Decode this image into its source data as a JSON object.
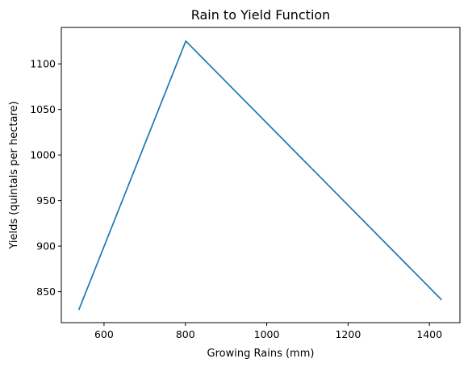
{
  "chart_data": {
    "type": "line",
    "title": "Rain to Yield Function",
    "xlabel": "Growing Rains (mm)",
    "ylabel": "Yields (quintals per hectare)",
    "xlim": [
      495,
      1475
    ],
    "ylim": [
      816,
      1140
    ],
    "xticks": [
      600,
      800,
      1000,
      1200,
      1400
    ],
    "yticks": [
      850,
      900,
      950,
      1000,
      1050,
      1100
    ],
    "grid": false,
    "series": [
      {
        "color": "#1f77b4",
        "x": [
          538,
          801,
          1430
        ],
        "y": [
          830,
          1125,
          841
        ]
      }
    ]
  }
}
